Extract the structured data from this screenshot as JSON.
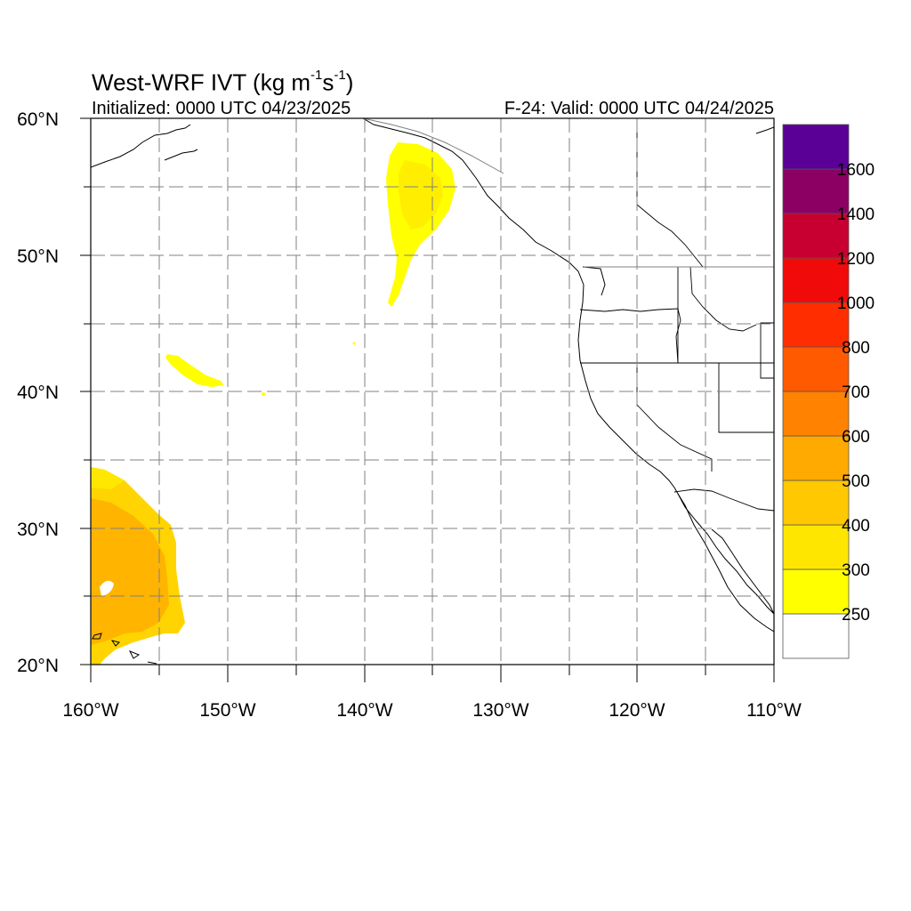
{
  "title": {
    "prefix": "West-WRF IVT (kg m",
    "sup1": "-1",
    "mid": "s",
    "sup2": "-1",
    "suffix": ")"
  },
  "subtitle_left": "Initialized: 0000 UTC 04/23/2025",
  "subtitle_right": "F-24: Valid: 0000 UTC 04/24/2025",
  "lat_labels": [
    "60°N",
    "50°N",
    "40°N",
    "30°N",
    "20°N"
  ],
  "lon_labels": [
    "160°W",
    "150°W",
    "140°W",
    "130°W",
    "120°W",
    "110°W"
  ],
  "colorbar": {
    "colors": [
      "#ffffff",
      "#ffff00",
      "#ffe600",
      "#ffc800",
      "#ffaa00",
      "#ff8200",
      "#ff5a00",
      "#ff2d00",
      "#f00a0a",
      "#c80032",
      "#8c0064",
      "#5a0096"
    ],
    "labels": [
      "250",
      "300",
      "400",
      "500",
      "600",
      "700",
      "800",
      "1000",
      "1200",
      "1400",
      "1600"
    ]
  }
}
